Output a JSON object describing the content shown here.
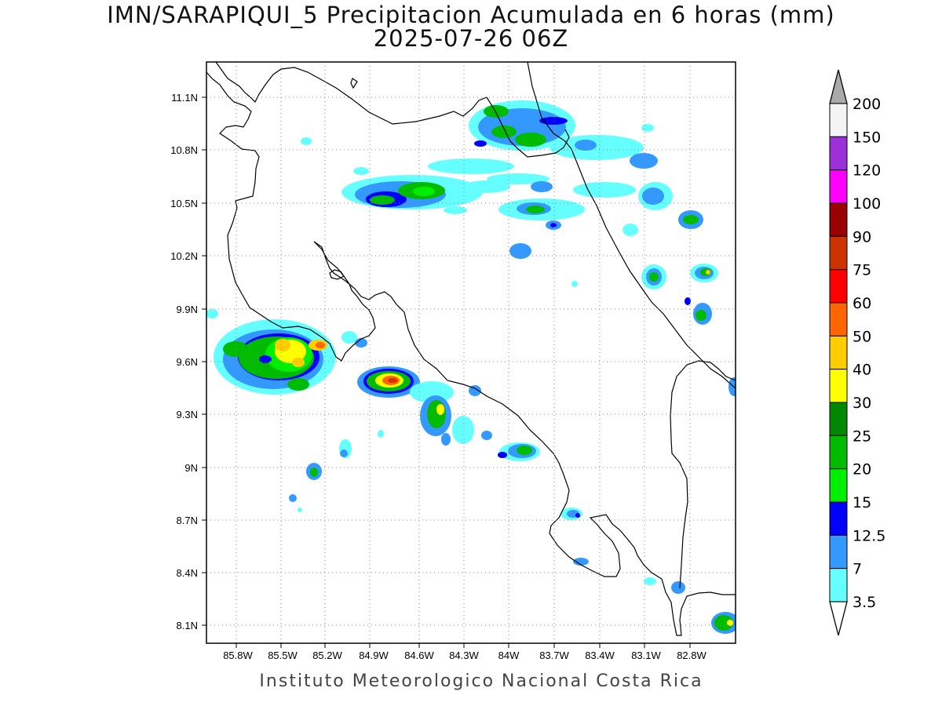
{
  "title": {
    "line1": "IMN/SARAPIQUI_5 Precipitacion Acumulada en 6 horas (mm)",
    "line2": "2025-07-26 06Z"
  },
  "footer": "Instituto Meteorologico Nacional Costa Rica",
  "axes": {
    "x_ticks": [
      "85.8W",
      "85.5W",
      "85.2W",
      "84.9W",
      "84.6W",
      "84.3W",
      "84W",
      "83.7W",
      "83.4W",
      "83.1W",
      "82.8W"
    ],
    "y_ticks": [
      "11.1N",
      "10.8N",
      "10.5N",
      "10.2N",
      "9.9N",
      "9.6N",
      "9.3N",
      "9N",
      "8.7N",
      "8.4N",
      "8.1N"
    ]
  },
  "colorbar": {
    "labels": [
      "200",
      "150",
      "120",
      "100",
      "90",
      "75",
      "60",
      "50",
      "40",
      "30",
      "25",
      "20",
      "15",
      "12.5",
      "7",
      "3.5"
    ],
    "colors": [
      "#f4f4f4",
      "#9b30d8",
      "#ff00ff",
      "#990000",
      "#cc3300",
      "#ff0000",
      "#ff6600",
      "#ffcc00",
      "#ffff00",
      "#008800",
      "#00bb00",
      "#00ee00",
      "#0000ff",
      "#3399ff",
      "#66ffff"
    ],
    "over_color": "#aaaaaa"
  }
}
